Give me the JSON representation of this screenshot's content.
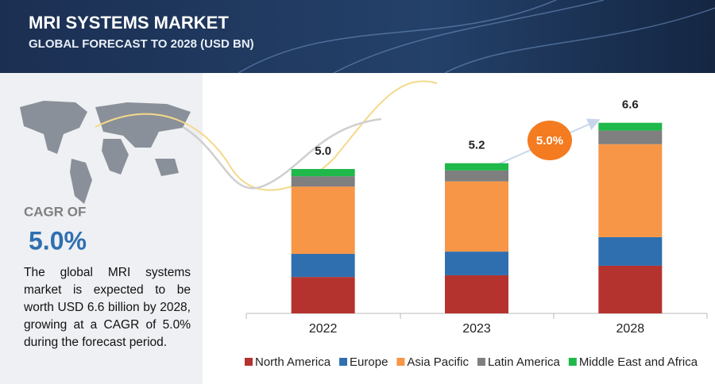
{
  "header": {
    "title": "MRI SYSTEMS MARKET",
    "subtitle": "GLOBAL FORECAST TO 2028 (USD BN)"
  },
  "sidebar": {
    "cagr_label": "CAGR OF",
    "cagr_value": "5.0%",
    "description": "The global MRI systems market is expected to be worth USD 6.6 billion by 2028, growing at a CAGR of 5.0% during the forecast period."
  },
  "chart_data": {
    "type": "stacked_bar",
    "categories": [
      "2022",
      "2023",
      "2028"
    ],
    "series": [
      {
        "name": "North America",
        "color": "#b5332e",
        "values": [
          1.26,
          1.32,
          1.65
        ]
      },
      {
        "name": "Europe",
        "color": "#2f6fb0",
        "values": [
          0.8,
          0.82,
          0.99
        ]
      },
      {
        "name": "Asia Pacific",
        "color": "#f79646",
        "values": [
          2.33,
          2.43,
          3.22
        ]
      },
      {
        "name": "Latin America",
        "color": "#7f7f7f",
        "values": [
          0.36,
          0.38,
          0.47
        ]
      },
      {
        "name": "Middle East and Africa",
        "color": "#1fb84a",
        "values": [
          0.25,
          0.25,
          0.27
        ]
      }
    ],
    "total_labels": [
      "5.0",
      "5.2",
      "6.6"
    ],
    "annotation": "5.0%",
    "ylim": [
      0,
      7.5
    ],
    "legend": "bottom"
  }
}
